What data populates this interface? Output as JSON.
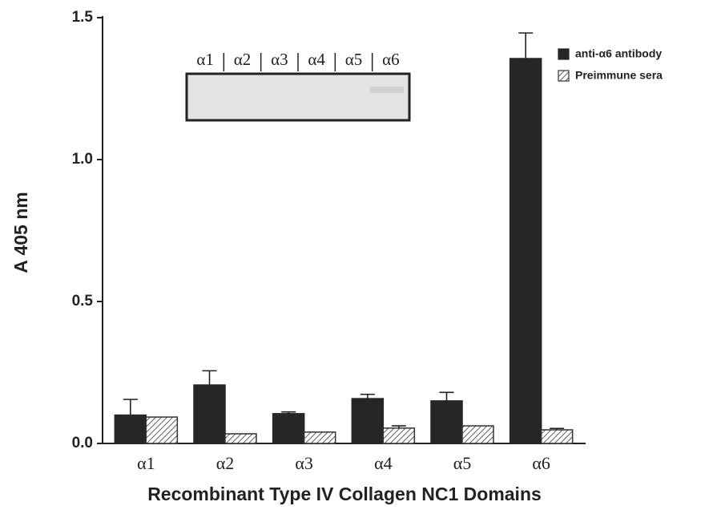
{
  "chart_data": {
    "type": "bar",
    "x_label": "Recombinant Type IV Collagen NC1 Domains",
    "y_label": "A 405 nm",
    "categories": [
      "α1",
      "α2",
      "α3",
      "α4",
      "α5",
      "α6"
    ],
    "series": [
      {
        "name": "anti-α6 antibody",
        "color": "#262626",
        "pattern": "solid",
        "values": [
          0.1,
          0.206,
          0.105,
          0.158,
          0.15,
          1.356
        ],
        "errors": [
          0.055,
          0.05,
          0.006,
          0.015,
          0.03,
          0.09
        ]
      },
      {
        "name": "Preimmune sera",
        "color": "#333333",
        "pattern": "hatch",
        "values": [
          0.093,
          0.034,
          0.04,
          0.054,
          0.062,
          0.048
        ],
        "errors": [
          0,
          0,
          0,
          0.008,
          0,
          0.005
        ]
      }
    ],
    "ylim": [
      0,
      1.5
    ],
    "yticks": [
      {
        "value": 0,
        "label": "0.0"
      },
      0.5,
      {
        "value": 1,
        "label": "1.0"
      },
      {
        "value": 1.5,
        "label": "1.5"
      }
    ],
    "grid": false,
    "legend": "upper right",
    "inset_labels": [
      "α1",
      "α2",
      "α3",
      "α4",
      "α5",
      "α6"
    ]
  }
}
